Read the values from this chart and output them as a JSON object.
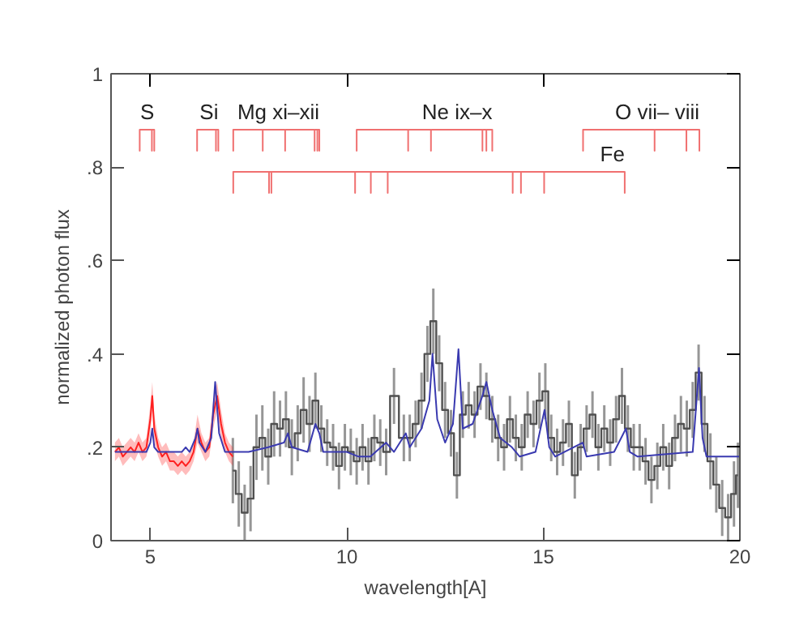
{
  "chart_data": {
    "type": "line",
    "xlabel": "wavelength[A]",
    "ylabel": "normalized photon flux",
    "xlim": [
      4,
      20
    ],
    "xticks": [
      5,
      10,
      15,
      20
    ],
    "ylim": [
      0,
      1
    ],
    "yticks": [
      {
        "value": 0,
        "label": "0"
      },
      {
        "value": 0.2,
        "label": ".2"
      },
      {
        "value": 0.4,
        "label": ".4"
      },
      {
        "value": 0.6,
        "label": ".6"
      },
      {
        "value": 0.8,
        "label": ".8"
      },
      {
        "value": 1,
        "label": "1"
      }
    ],
    "grid": false,
    "series": [
      {
        "name": "S",
        "color": "#f07070",
        "x": [
          4.73,
          4.73,
          4.73,
          5.04,
          5.04,
          5.04,
          5.1,
          5.1,
          5.1
        ],
        "values": [
          0.88,
          0.835,
          0.88,
          0.88,
          0.835,
          0.88,
          0.88,
          0.835,
          0.88
        ]
      },
      {
        "name": "Si",
        "color": "#f07070",
        "x": [
          6.19,
          6.19,
          6.19,
          6.67,
          6.67,
          6.67,
          6.73,
          6.73,
          6.73
        ],
        "values": [
          0.88,
          0.835,
          0.88,
          0.88,
          0.835,
          0.88,
          0.88,
          0.835,
          0.88
        ]
      },
      {
        "name": "Mg xi–xii",
        "color": "#f07070",
        "x": [
          7.11,
          7.11,
          7.11,
          7.86,
          7.86,
          7.86,
          8.43,
          8.43,
          8.43,
          9.18,
          9.18,
          9.18,
          9.25,
          9.25,
          9.25,
          9.3,
          9.3,
          9.3
        ],
        "values": [
          0.88,
          0.835,
          0.88,
          0.88,
          0.835,
          0.88,
          0.88,
          0.835,
          0.88,
          0.88,
          0.835,
          0.88,
          0.88,
          0.835,
          0.88,
          0.88,
          0.835,
          0.88
        ]
      },
      {
        "name": "Ne ix–x",
        "color": "#f07070",
        "x": [
          10.25,
          10.25,
          10.25,
          11.56,
          11.56,
          11.56,
          12.14,
          12.14,
          12.14,
          13.45,
          13.45,
          13.45,
          13.55,
          13.55,
          13.55,
          13.7,
          13.7,
          13.7
        ],
        "values": [
          0.88,
          0.835,
          0.88,
          0.88,
          0.835,
          0.88,
          0.88,
          0.835,
          0.88,
          0.88,
          0.835,
          0.88,
          0.88,
          0.835,
          0.88,
          0.88,
          0.835,
          0.88
        ]
      },
      {
        "name": "O vii– viii",
        "color": "#f07070",
        "x": [
          16.01,
          16.01,
          16.01,
          17.83,
          17.83,
          17.83,
          18.64,
          18.64,
          18.64,
          18.97,
          18.97,
          18.97
        ],
        "values": [
          0.88,
          0.835,
          0.88,
          0.88,
          0.835,
          0.88,
          0.88,
          0.835,
          0.88,
          0.88,
          0.835,
          0.88
        ]
      },
      {
        "name": "Fe",
        "color": "#f07070",
        "x": [
          7.11,
          7.11,
          7.11,
          8.02,
          8.02,
          8.02,
          8.08,
          8.08,
          8.08,
          10.21,
          10.21,
          10.21,
          10.61,
          10.61,
          10.61,
          11.04,
          11.04,
          11.04,
          14.22,
          14.22,
          14.22,
          14.43,
          14.43,
          14.43,
          15.02,
          15.02,
          15.02,
          17.07,
          17.07,
          17.07
        ],
        "values": [
          0.79,
          0.745,
          0.79,
          0.79,
          0.745,
          0.79,
          0.79,
          0.745,
          0.79,
          0.79,
          0.745,
          0.79,
          0.79,
          0.745,
          0.79,
          0.79,
          0.745,
          0.79,
          0.79,
          0.745,
          0.79,
          0.79,
          0.745,
          0.79,
          0.79,
          0.745,
          0.79,
          0.79,
          0.745,
          0.79
        ]
      },
      {
        "color": "#ff2020",
        "x": [
          4.1,
          4.2,
          4.3,
          4.4,
          4.5,
          4.6,
          4.7,
          4.8,
          4.9,
          5.0,
          5.05,
          5.1,
          5.2,
          5.3,
          5.4,
          5.5,
          5.6,
          5.7,
          5.8,
          5.9,
          6.0,
          6.1,
          6.2,
          6.3,
          6.4,
          6.5,
          6.6,
          6.7,
          6.8,
          6.9,
          7.0,
          7.1
        ],
        "values": [
          0.19,
          0.2,
          0.18,
          0.19,
          0.2,
          0.19,
          0.21,
          0.19,
          0.2,
          0.26,
          0.31,
          0.24,
          0.2,
          0.18,
          0.19,
          0.17,
          0.17,
          0.16,
          0.17,
          0.16,
          0.17,
          0.19,
          0.24,
          0.21,
          0.19,
          0.2,
          0.27,
          0.31,
          0.25,
          0.21,
          0.19,
          0.18
        ],
        "lower": [
          0.17,
          0.18,
          0.16,
          0.17,
          0.18,
          0.17,
          0.19,
          0.17,
          0.18,
          0.23,
          0.28,
          0.21,
          0.18,
          0.16,
          0.17,
          0.15,
          0.15,
          0.14,
          0.15,
          0.14,
          0.15,
          0.17,
          0.21,
          0.19,
          0.17,
          0.18,
          0.24,
          0.28,
          0.22,
          0.19,
          0.17,
          0.16
        ],
        "upper": [
          0.21,
          0.22,
          0.2,
          0.21,
          0.22,
          0.21,
          0.23,
          0.21,
          0.22,
          0.29,
          0.34,
          0.27,
          0.22,
          0.2,
          0.21,
          0.19,
          0.19,
          0.18,
          0.19,
          0.18,
          0.19,
          0.21,
          0.27,
          0.23,
          0.21,
          0.22,
          0.3,
          0.34,
          0.28,
          0.23,
          0.21,
          0.2
        ]
      },
      {
        "type": "step",
        "color": "#505050",
        "x": [
          7.1,
          7.25,
          7.4,
          7.55,
          7.7,
          7.85,
          8.0,
          8.15,
          8.3,
          8.45,
          8.6,
          8.75,
          8.9,
          9.05,
          9.2,
          9.35,
          9.5,
          9.65,
          9.8,
          9.95,
          10.1,
          10.25,
          10.4,
          10.55,
          10.7,
          10.85,
          11.0,
          11.2,
          11.45,
          11.6,
          11.75,
          11.9,
          12.05,
          12.2,
          12.35,
          12.5,
          12.65,
          12.8,
          12.95,
          13.1,
          13.25,
          13.4,
          13.55,
          13.7,
          13.85,
          14.0,
          14.15,
          14.3,
          14.45,
          14.6,
          14.75,
          14.9,
          15.05,
          15.2,
          15.35,
          15.5,
          15.65,
          15.8,
          15.95,
          16.1,
          16.25,
          16.4,
          16.55,
          16.7,
          16.85,
          17.0,
          17.15,
          17.3,
          17.45,
          17.6,
          17.75,
          17.9,
          18.05,
          18.2,
          18.35,
          18.5,
          18.65,
          18.8,
          18.95,
          19.1,
          19.25,
          19.4,
          19.55,
          19.7,
          19.85,
          19.95
        ],
        "values": [
          0.15,
          0.1,
          0.06,
          0.09,
          0.2,
          0.22,
          0.18,
          0.25,
          0.24,
          0.26,
          0.2,
          0.23,
          0.28,
          0.25,
          0.3,
          0.24,
          0.21,
          0.2,
          0.16,
          0.2,
          0.19,
          0.17,
          0.2,
          0.17,
          0.22,
          0.21,
          0.19,
          0.31,
          0.22,
          0.22,
          0.25,
          0.3,
          0.4,
          0.47,
          0.38,
          0.28,
          0.23,
          0.14,
          0.27,
          0.29,
          0.27,
          0.33,
          0.31,
          0.26,
          0.22,
          0.2,
          0.26,
          0.22,
          0.2,
          0.27,
          0.25,
          0.3,
          0.32,
          0.22,
          0.19,
          0.21,
          0.25,
          0.14,
          0.2,
          0.24,
          0.27,
          0.2,
          0.24,
          0.21,
          0.26,
          0.31,
          0.24,
          0.2,
          0.2,
          0.17,
          0.13,
          0.16,
          0.2,
          0.16,
          0.22,
          0.25,
          0.24,
          0.28,
          0.36,
          0.25,
          0.17,
          0.12,
          0.07,
          0.05,
          0.1,
          0.14
        ],
        "errors": [
          0.07,
          0.07,
          0.06,
          0.07,
          0.07,
          0.07,
          0.06,
          0.07,
          0.06,
          0.06,
          0.06,
          0.06,
          0.07,
          0.06,
          0.06,
          0.05,
          0.05,
          0.05,
          0.05,
          0.05,
          0.05,
          0.05,
          0.05,
          0.05,
          0.05,
          0.05,
          0.05,
          0.06,
          0.05,
          0.05,
          0.05,
          0.06,
          0.06,
          0.07,
          0.06,
          0.06,
          0.05,
          0.05,
          0.05,
          0.05,
          0.05,
          0.05,
          0.05,
          0.05,
          0.05,
          0.05,
          0.05,
          0.05,
          0.05,
          0.05,
          0.05,
          0.06,
          0.06,
          0.05,
          0.05,
          0.05,
          0.05,
          0.05,
          0.05,
          0.05,
          0.05,
          0.05,
          0.05,
          0.05,
          0.05,
          0.06,
          0.05,
          0.05,
          0.05,
          0.05,
          0.05,
          0.05,
          0.05,
          0.05,
          0.05,
          0.06,
          0.06,
          0.06,
          0.06,
          0.06,
          0.06,
          0.06,
          0.06,
          0.05,
          0.07,
          0.07
        ]
      },
      {
        "color": "#3a3ab0",
        "x": [
          4.1,
          4.9,
          5.0,
          5.05,
          5.1,
          5.2,
          5.8,
          5.9,
          6.0,
          6.15,
          6.2,
          6.25,
          6.4,
          6.55,
          6.65,
          6.75,
          6.9,
          7.5,
          8.0,
          8.4,
          8.5,
          8.6,
          9.0,
          9.2,
          9.3,
          9.4,
          10.0,
          10.3,
          10.6,
          11.0,
          11.2,
          11.5,
          11.6,
          11.9,
          12.1,
          12.18,
          12.3,
          12.5,
          12.7,
          12.84,
          12.95,
          13.2,
          13.45,
          13.55,
          13.7,
          13.9,
          14.2,
          14.4,
          14.8,
          15.03,
          15.15,
          15.3,
          16.0,
          16.1,
          16.8,
          17.1,
          17.2,
          17.4,
          18.8,
          18.96,
          19.05,
          19.15,
          20.0
        ],
        "values": [
          0.19,
          0.19,
          0.21,
          0.24,
          0.2,
          0.19,
          0.19,
          0.2,
          0.19,
          0.22,
          0.24,
          0.21,
          0.19,
          0.22,
          0.34,
          0.23,
          0.19,
          0.19,
          0.2,
          0.21,
          0.23,
          0.2,
          0.19,
          0.25,
          0.23,
          0.19,
          0.19,
          0.18,
          0.18,
          0.21,
          0.19,
          0.23,
          0.2,
          0.24,
          0.3,
          0.4,
          0.26,
          0.21,
          0.25,
          0.41,
          0.24,
          0.25,
          0.31,
          0.34,
          0.28,
          0.22,
          0.2,
          0.18,
          0.19,
          0.28,
          0.2,
          0.18,
          0.21,
          0.18,
          0.19,
          0.24,
          0.19,
          0.18,
          0.19,
          0.37,
          0.22,
          0.18,
          0.18
        ]
      }
    ]
  }
}
